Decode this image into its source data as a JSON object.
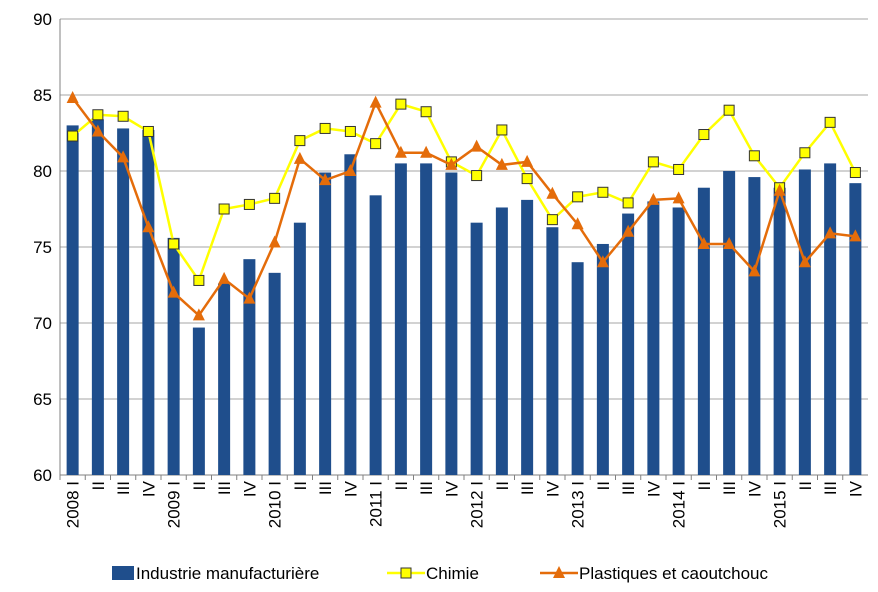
{
  "chart_data": {
    "type": "bar-line",
    "categories": [
      "2008 I",
      "II",
      "III",
      "IV",
      "2009 I",
      "II",
      "III",
      "IV",
      "2010 I",
      "II",
      "III",
      "IV",
      "2011 I",
      "II",
      "III",
      "IV",
      "2012 I",
      "II",
      "III",
      "IV",
      "2013 I",
      "II",
      "III",
      "IV",
      "2014 I",
      "II",
      "III",
      "IV",
      "2015 I",
      "II",
      "III",
      "IV"
    ],
    "series": [
      {
        "name": "Industrie manufacturière",
        "type": "bar",
        "color": "#1f4e8c",
        "values": [
          83.0,
          83.4,
          82.8,
          82.7,
          75.6,
          69.7,
          72.6,
          74.2,
          73.3,
          76.6,
          79.9,
          81.1,
          78.4,
          80.5,
          80.5,
          79.9,
          76.6,
          77.6,
          78.1,
          76.3,
          74.0,
          75.2,
          77.2,
          78.0,
          77.6,
          78.9,
          80.0,
          79.6,
          78.9,
          80.1,
          80.5,
          79.2
        ]
      },
      {
        "name": "Chimie",
        "type": "line",
        "marker": "square",
        "color": "#ffff00",
        "values": [
          82.3,
          83.7,
          83.6,
          82.6,
          75.2,
          72.8,
          77.5,
          77.8,
          78.2,
          82.0,
          82.8,
          82.6,
          81.8,
          84.4,
          83.9,
          80.6,
          79.7,
          82.7,
          79.5,
          76.8,
          78.3,
          78.6,
          77.9,
          80.6,
          80.1,
          82.4,
          84.0,
          81.0,
          78.9,
          81.2,
          83.2,
          79.9
        ]
      },
      {
        "name": "Plastiques et caoutchouc",
        "type": "line",
        "marker": "triangle",
        "color": "#e46c0a",
        "values": [
          84.8,
          82.6,
          80.9,
          76.3,
          72.0,
          70.5,
          72.9,
          71.6,
          75.3,
          80.8,
          79.4,
          80.0,
          84.5,
          81.2,
          81.2,
          80.4,
          81.6,
          80.4,
          80.6,
          78.5,
          76.5,
          74.0,
          76.0,
          78.1,
          78.2,
          75.2,
          75.2,
          73.4,
          78.7,
          74.0,
          75.9,
          75.7
        ]
      }
    ],
    "ylim": [
      60,
      90
    ],
    "yticks": [
      60,
      65,
      70,
      75,
      80,
      85,
      90
    ],
    "grid": true
  }
}
